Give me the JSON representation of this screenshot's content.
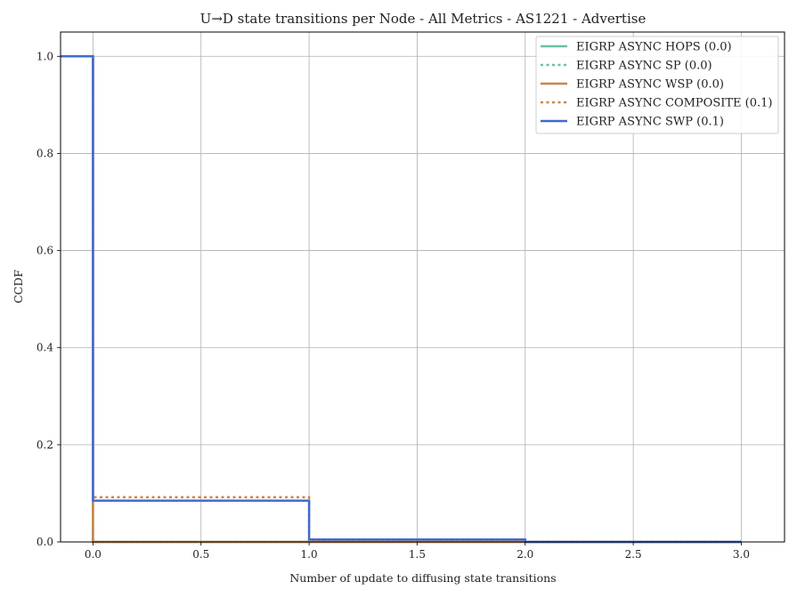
{
  "chart_data": {
    "type": "line",
    "step": true,
    "title": "U→D state transitions per Node - All Metrics - AS1221 - Advertise",
    "xlabel": "Number of update to diffusing state transitions",
    "ylabel": "CCDF",
    "xlim": [
      -0.15,
      3.2
    ],
    "ylim": [
      0.0,
      1.05
    ],
    "xticks": [
      0.0,
      0.5,
      1.0,
      1.5,
      2.0,
      2.5,
      3.0
    ],
    "xtick_labels": [
      "0.0",
      "0.5",
      "1.0",
      "1.5",
      "2.0",
      "2.5",
      "3.0"
    ],
    "yticks": [
      0.0,
      0.2,
      0.4,
      0.6,
      0.8,
      1.0
    ],
    "ytick_labels": [
      "0.0",
      "0.2",
      "0.4",
      "0.6",
      "0.8",
      "1.0"
    ],
    "grid": true,
    "legend_position": "top-right",
    "series": [
      {
        "name": "EIGRP ASYNC HOPS (0.0)",
        "color": "#66c2a5",
        "style": "solid",
        "points": [
          [
            -0.15,
            1.0
          ],
          [
            0.0,
            1.0
          ],
          [
            0.0,
            0.0
          ],
          [
            3.0,
            0.0
          ]
        ]
      },
      {
        "name": "EIGRP ASYNC SP (0.0)",
        "color": "#66c2a5",
        "style": "dotted",
        "points": [
          [
            -0.15,
            1.0
          ],
          [
            0.0,
            1.0
          ],
          [
            0.0,
            0.0
          ],
          [
            3.0,
            0.0
          ]
        ]
      },
      {
        "name": "EIGRP ASYNC WSP (0.0)",
        "color": "#c8864a",
        "style": "solid",
        "points": [
          [
            -0.15,
            1.0
          ],
          [
            0.0,
            1.0
          ],
          [
            0.0,
            0.0
          ],
          [
            3.0,
            0.0
          ]
        ]
      },
      {
        "name": "EIGRP ASYNC COMPOSITE (0.1)",
        "color": "#c8864a",
        "style": "dotted",
        "points": [
          [
            -0.15,
            1.0
          ],
          [
            0.0,
            1.0
          ],
          [
            0.0,
            0.092
          ],
          [
            1.0,
            0.092
          ],
          [
            1.0,
            0.004
          ],
          [
            2.0,
            0.004
          ],
          [
            2.0,
            0.0
          ],
          [
            3.0,
            0.0
          ]
        ]
      },
      {
        "name": "EIGRP ASYNC SWP (0.1)",
        "color": "#4169d4",
        "style": "solid",
        "points": [
          [
            -0.15,
            1.0
          ],
          [
            0.0,
            1.0
          ],
          [
            0.0,
            0.085
          ],
          [
            1.0,
            0.085
          ],
          [
            1.0,
            0.005
          ],
          [
            2.0,
            0.005
          ],
          [
            2.0,
            0.0
          ],
          [
            3.0,
            0.0
          ]
        ]
      }
    ]
  }
}
